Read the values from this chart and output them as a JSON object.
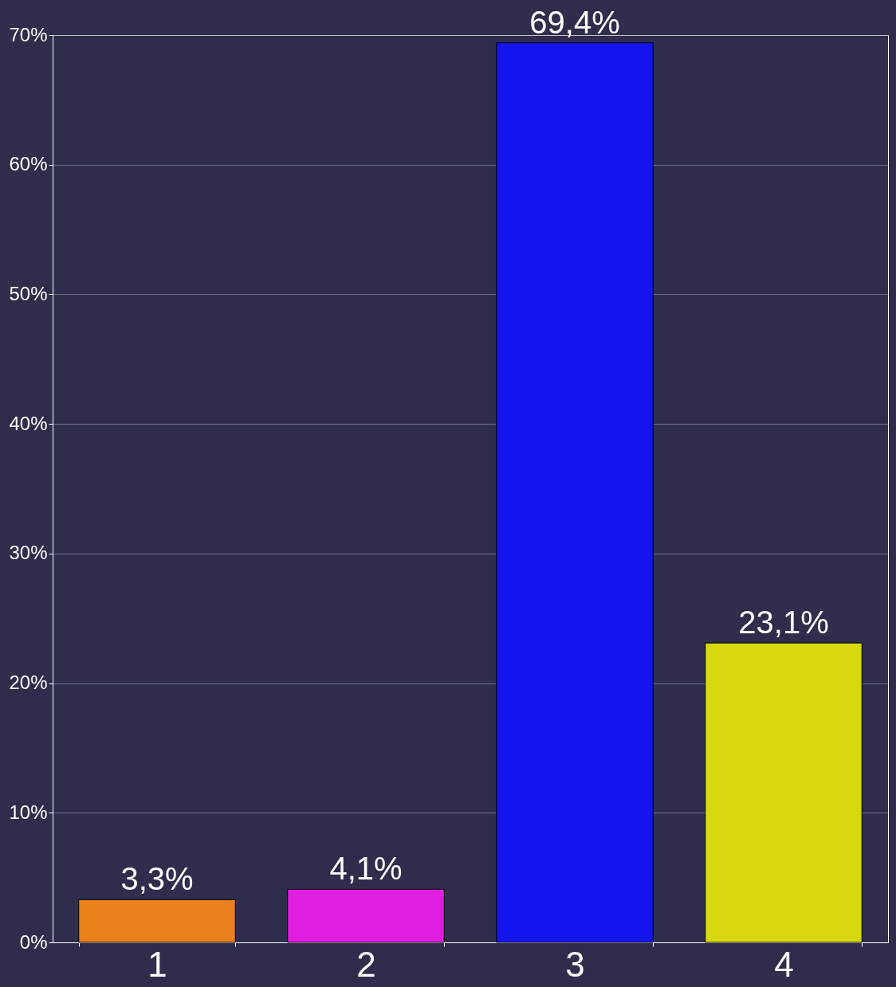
{
  "chart_data": {
    "type": "bar",
    "categories": [
      "1",
      "2",
      "3",
      "4"
    ],
    "values": [
      3.3,
      4.1,
      69.4,
      23.1
    ],
    "colors": [
      "#e8801c",
      "#e01ee0",
      "#1414ee",
      "#d8d810"
    ],
    "value_labels": [
      "3,3%",
      "4,1%",
      "69,4%",
      "23,1%"
    ],
    "ylim": [
      0,
      70
    ],
    "yticks": [
      {
        "value": 0,
        "label": "0%"
      },
      {
        "value": 10,
        "label": "10%"
      },
      {
        "value": 20,
        "label": "20%"
      },
      {
        "value": 30,
        "label": "30%"
      },
      {
        "value": 40,
        "label": "40%"
      },
      {
        "value": 50,
        "label": "50%"
      },
      {
        "value": 60,
        "label": "60%"
      },
      {
        "value": 70,
        "label": "70%"
      }
    ],
    "grid": "y"
  }
}
